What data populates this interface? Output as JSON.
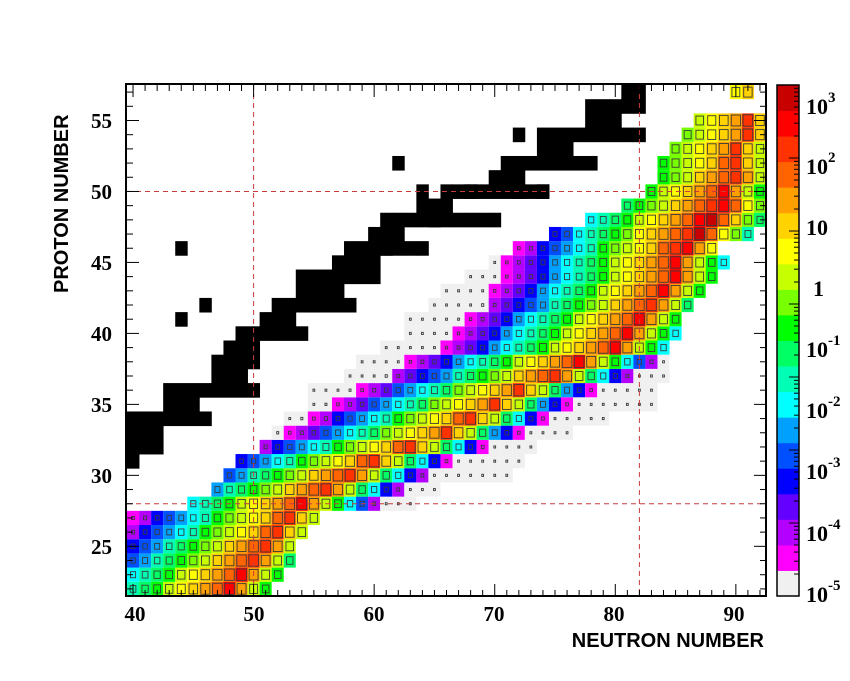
{
  "chart_data": {
    "type": "heatmap",
    "xlabel": "NEUTRON NUMBER",
    "ylabel": "PROTON NUMBER",
    "xlim": [
      39.5,
      92.5
    ],
    "ylim": [
      21.5,
      57.5
    ],
    "x_ticks": [
      "40",
      "50",
      "60",
      "70",
      "80",
      "90"
    ],
    "y_ticks": [
      "25",
      "30",
      "35",
      "40",
      "45",
      "50",
      "55"
    ],
    "magic_numbers": {
      "neutron": [
        50,
        82
      ],
      "proton": [
        28,
        50
      ]
    },
    "grid": false,
    "colorbar": {
      "scale": "log",
      "range": [
        0.0001,
        1000
      ],
      "labels": [
        {
          "base": "10",
          "exp": "3"
        },
        {
          "base": "10",
          "exp": "2"
        },
        {
          "base": "10",
          "exp": ""
        },
        {
          "base": "1",
          "exp": ""
        },
        {
          "base": "10",
          "exp": "-1"
        },
        {
          "base": "10",
          "exp": "-2"
        },
        {
          "base": "10",
          "exp": "-3"
        },
        {
          "base": "10",
          "exp": "-4"
        },
        {
          "base": "10",
          "exp": "-5"
        }
      ],
      "colors": [
        "#f0f0f0",
        "#ff00ff",
        "#b400ff",
        "#6400ff",
        "#0000ff",
        "#0050ff",
        "#00a0ff",
        "#00ffff",
        "#00ffb4",
        "#00ff64",
        "#00ff00",
        "#78ff00",
        "#c8ff00",
        "#ffff00",
        "#ffd200",
        "#ffa000",
        "#ff6400",
        "#ff3200",
        "#ff0000",
        "#c80000"
      ]
    },
    "stable_nuclei_rows": [
      {
        "z": 31,
        "n": [
          39,
          40
        ]
      },
      {
        "z": 32,
        "n": [
          39,
          42
        ]
      },
      {
        "z": 33,
        "n": [
          40,
          42
        ]
      },
      {
        "z": 34,
        "n": [
          39,
          46
        ]
      },
      {
        "z": 35,
        "n": [
          43,
          45
        ]
      },
      {
        "z": 36,
        "n": [
          43,
          50
        ]
      },
      {
        "z": 37,
        "n": [
          47,
          49
        ]
      },
      {
        "z": 38,
        "n": [
          47,
          50
        ]
      },
      {
        "z": 39,
        "n": [
          48,
          50
        ]
      },
      {
        "z": 40,
        "n": [
          49,
          54
        ]
      },
      {
        "z": 41,
        "n": [
          51,
          53
        ]
      },
      {
        "z": 42,
        "n": [
          52,
          58
        ]
      },
      {
        "z": 43,
        "n": [
          54,
          57
        ]
      },
      {
        "z": 44,
        "n": [
          54,
          60
        ]
      },
      {
        "z": 45,
        "n": [
          57,
          60
        ]
      },
      {
        "z": 46,
        "n": [
          58,
          64
        ]
      },
      {
        "z": 47,
        "n": [
          60,
          62
        ]
      },
      {
        "z": 48,
        "n": [
          61,
          70
        ]
      },
      {
        "z": 49,
        "n": [
          64,
          66
        ]
      },
      {
        "z": 50,
        "n": [
          66,
          74
        ]
      },
      {
        "z": 51,
        "n": [
          70,
          72
        ]
      },
      {
        "z": 52,
        "n": [
          71,
          78
        ]
      },
      {
        "z": 53,
        "n": [
          74,
          76
        ]
      },
      {
        "z": 54,
        "n": [
          74,
          82
        ]
      },
      {
        "z": 55,
        "n": [
          78,
          80
        ]
      },
      {
        "z": 56,
        "n": [
          78,
          82
        ]
      },
      {
        "z": 57,
        "n": [
          81,
          82
        ]
      }
    ],
    "stable_nuclei_extra": [
      [
        44,
        41
      ],
      [
        44,
        46
      ],
      [
        46,
        42
      ],
      [
        55,
        42
      ],
      [
        58,
        45
      ],
      [
        61,
        46
      ],
      [
        65,
        48
      ],
      [
        64,
        50
      ],
      [
        68,
        50
      ],
      [
        72,
        50
      ],
      [
        74,
        50
      ],
      [
        62,
        52
      ],
      [
        72,
        54
      ]
    ],
    "measured_rows": [
      {
        "z": 22,
        "n": [
          40,
          51
        ],
        "peak": 48,
        "peak_value": 200
      },
      {
        "z": 23,
        "n": [
          40,
          52
        ],
        "peak": 49,
        "peak_value": 200
      },
      {
        "z": 24,
        "n": [
          40,
          53
        ],
        "peak": 50,
        "peak_value": 150
      },
      {
        "z": 25,
        "n": [
          40,
          53
        ],
        "peak": 51,
        "peak_value": 150
      },
      {
        "z": 26,
        "n": [
          40,
          54
        ],
        "peak": 52,
        "peak_value": 120
      },
      {
        "z": 27,
        "n": [
          40,
          55
        ],
        "peak": 53,
        "peak_value": 120
      },
      {
        "z": 28,
        "n": [
          45,
          63
        ],
        "peak": 54,
        "peak_value": 200
      },
      {
        "z": 29,
        "n": [
          47,
          65
        ],
        "peak": 56,
        "peak_value": 150
      },
      {
        "z": 30,
        "n": [
          48,
          71
        ],
        "peak": 58,
        "peak_value": 150
      },
      {
        "z": 31,
        "n": [
          49,
          72
        ],
        "peak": 60,
        "peak_value": 120
      },
      {
        "z": 32,
        "n": [
          51,
          73
        ],
        "peak": 63,
        "peak_value": 120
      },
      {
        "z": 33,
        "n": [
          52,
          76
        ],
        "peak": 66,
        "peak_value": 100
      },
      {
        "z": 34,
        "n": [
          53,
          79
        ],
        "peak": 68,
        "peak_value": 120
      },
      {
        "z": 35,
        "n": [
          55,
          83
        ],
        "peak": 70,
        "peak_value": 100
      },
      {
        "z": 36,
        "n": [
          55,
          83
        ],
        "peak": 72,
        "peak_value": 100
      },
      {
        "z": 37,
        "n": [
          58,
          84
        ],
        "peak": 75,
        "peak_value": 150
      },
      {
        "z": 38,
        "n": [
          59,
          84
        ],
        "peak": 77,
        "peak_value": 200
      },
      {
        "z": 39,
        "n": [
          61,
          84
        ],
        "peak": 80,
        "peak_value": 200
      },
      {
        "z": 40,
        "n": [
          63,
          85
        ],
        "peak": 81,
        "peak_value": 200
      },
      {
        "z": 41,
        "n": [
          63,
          85
        ],
        "peak": 82,
        "peak_value": 200
      },
      {
        "z": 42,
        "n": [
          65,
          86
        ],
        "peak": 83,
        "peak_value": 150
      },
      {
        "z": 43,
        "n": [
          66,
          87
        ],
        "peak": 84,
        "peak_value": 200
      },
      {
        "z": 44,
        "n": [
          68,
          88
        ],
        "peak": 85,
        "peak_value": 200
      },
      {
        "z": 45,
        "n": [
          70,
          89
        ],
        "peak": 85,
        "peak_value": 200
      },
      {
        "z": 46,
        "n": [
          72,
          88
        ],
        "peak": 86,
        "peak_value": 300
      },
      {
        "z": 47,
        "n": [
          75,
          91
        ],
        "peak": 87,
        "peak_value": 500
      },
      {
        "z": 48,
        "n": [
          78,
          92
        ],
        "peak": 88,
        "peak_value": 600
      },
      {
        "z": 49,
        "n": [
          81,
          92
        ],
        "peak": 89,
        "peak_value": 400
      },
      {
        "z": 50,
        "n": [
          83,
          92
        ],
        "peak": 89,
        "peak_value": 200
      },
      {
        "z": 51,
        "n": [
          84,
          92
        ],
        "peak": 90,
        "peak_value": 150
      },
      {
        "z": 52,
        "n": [
          84,
          92
        ],
        "peak": 90,
        "peak_value": 120
      },
      {
        "z": 53,
        "n": [
          85,
          92
        ],
        "peak": 90,
        "peak_value": 100
      },
      {
        "z": 54,
        "n": [
          86,
          92
        ],
        "peak": 91,
        "peak_value": 100
      },
      {
        "z": 55,
        "n": [
          87,
          92
        ],
        "peak": 91,
        "peak_value": 100
      },
      {
        "z": 57,
        "n": [
          90,
          91
        ],
        "peak": 91,
        "peak_value": 10
      }
    ]
  }
}
